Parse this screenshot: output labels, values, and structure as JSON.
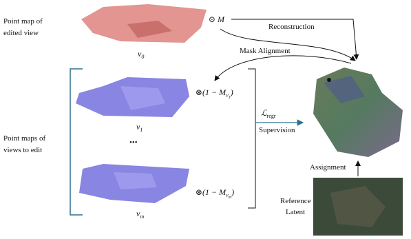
{
  "edited_view": {
    "label": [
      "Point map of",
      "edited view"
    ],
    "caption": {
      "base": "v",
      "sub": "0"
    }
  },
  "mask_op": "⊙ M",
  "reconstruction": "Reconstruction",
  "mask_alignment": "Mask Alignment",
  "views": {
    "label": [
      "Point maps of",
      "views to edit"
    ],
    "items": [
      {
        "base": "v",
        "sub": "1",
        "mask": {
          "prefix": "⊗(1 − M",
          "sub": "v",
          "subsub": "1",
          "suffix": ")"
        }
      },
      {
        "base": "v",
        "sub": "m",
        "mask": {
          "prefix": "⊗(1 − M",
          "sub": "v",
          "subsub": "m",
          "suffix": ")"
        }
      }
    ],
    "ellipsis": "•••"
  },
  "loss": {
    "base": "ℒ",
    "sub": "regr"
  },
  "supervision": "Supervision",
  "assignment": "Assignment",
  "reference": [
    "Reference",
    "Latent"
  ]
}
